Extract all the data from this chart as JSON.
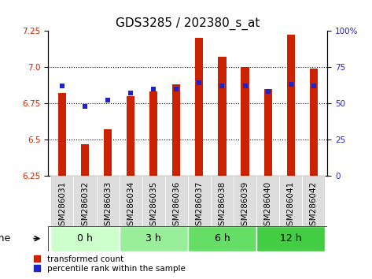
{
  "title": "GDS3285 / 202380_s_at",
  "samples": [
    "GSM286031",
    "GSM286032",
    "GSM286033",
    "GSM286034",
    "GSM286035",
    "GSM286036",
    "GSM286037",
    "GSM286038",
    "GSM286039",
    "GSM286040",
    "GSM286041",
    "GSM286042"
  ],
  "red_values": [
    6.82,
    6.47,
    6.57,
    6.8,
    6.83,
    6.88,
    7.2,
    7.07,
    7.0,
    6.85,
    7.22,
    6.99
  ],
  "blue_values": [
    62,
    48,
    52,
    57,
    60,
    60,
    64,
    62,
    62,
    58,
    63,
    62
  ],
  "groups": [
    {
      "label": "0 h",
      "start": 0,
      "end": 3,
      "color": "#ccffcc"
    },
    {
      "label": "3 h",
      "start": 3,
      "end": 6,
      "color": "#99ee99"
    },
    {
      "label": "6 h",
      "start": 6,
      "end": 9,
      "color": "#66dd66"
    },
    {
      "label": "12 h",
      "start": 9,
      "end": 12,
      "color": "#44cc44"
    }
  ],
  "ylim_left": [
    6.25,
    7.25
  ],
  "yticks_left": [
    6.25,
    6.5,
    6.75,
    7.0,
    7.25
  ],
  "ylim_right": [
    0,
    100
  ],
  "yticks_right": [
    0,
    25,
    50,
    75,
    100
  ],
  "bar_color": "#cc2200",
  "blue_color": "#2222cc",
  "bar_width": 0.35,
  "legend_red": "transformed count",
  "legend_blue": "percentile rank within the sample",
  "title_fontsize": 11,
  "tick_fontsize": 7.5,
  "label_fontsize": 9,
  "group_fontsize": 9
}
